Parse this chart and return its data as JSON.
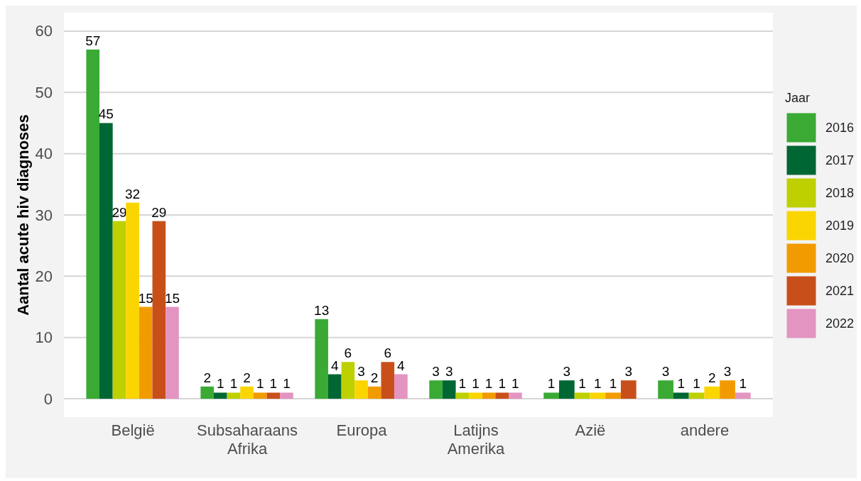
{
  "chart_data": {
    "type": "bar",
    "ylabel": "Aantal acute hiv diagnoses",
    "legend_title": "Jaar",
    "categories": [
      "België",
      "Subsaharaans Afrika",
      "Europa",
      "Latijns Amerika",
      "Azië",
      "andere"
    ],
    "series": [
      {
        "name": "2016",
        "color": "#3aaa35",
        "values": [
          57,
          2,
          13,
          3,
          1,
          3
        ]
      },
      {
        "name": "2017",
        "color": "#006633",
        "values": [
          45,
          1,
          4,
          3,
          3,
          1
        ]
      },
      {
        "name": "2018",
        "color": "#bed000",
        "values": [
          29,
          1,
          6,
          1,
          1,
          1
        ]
      },
      {
        "name": "2019",
        "color": "#fad500",
        "values": [
          32,
          2,
          3,
          1,
          1,
          2
        ]
      },
      {
        "name": "2020",
        "color": "#f29b00",
        "values": [
          15,
          1,
          2,
          1,
          1,
          3
        ]
      },
      {
        "name": "2021",
        "color": "#c94f1a",
        "values": [
          29,
          1,
          6,
          1,
          3,
          null
        ]
      },
      {
        "name": "2022",
        "color": "#e394c1",
        "values": [
          15,
          1,
          4,
          1,
          null,
          1
        ]
      }
    ],
    "ylim": [
      -3,
      63
    ],
    "yticks": [
      0,
      10,
      20,
      30,
      40,
      50,
      60
    ],
    "grid": "y",
    "legend": "right",
    "data_labels": true
  }
}
